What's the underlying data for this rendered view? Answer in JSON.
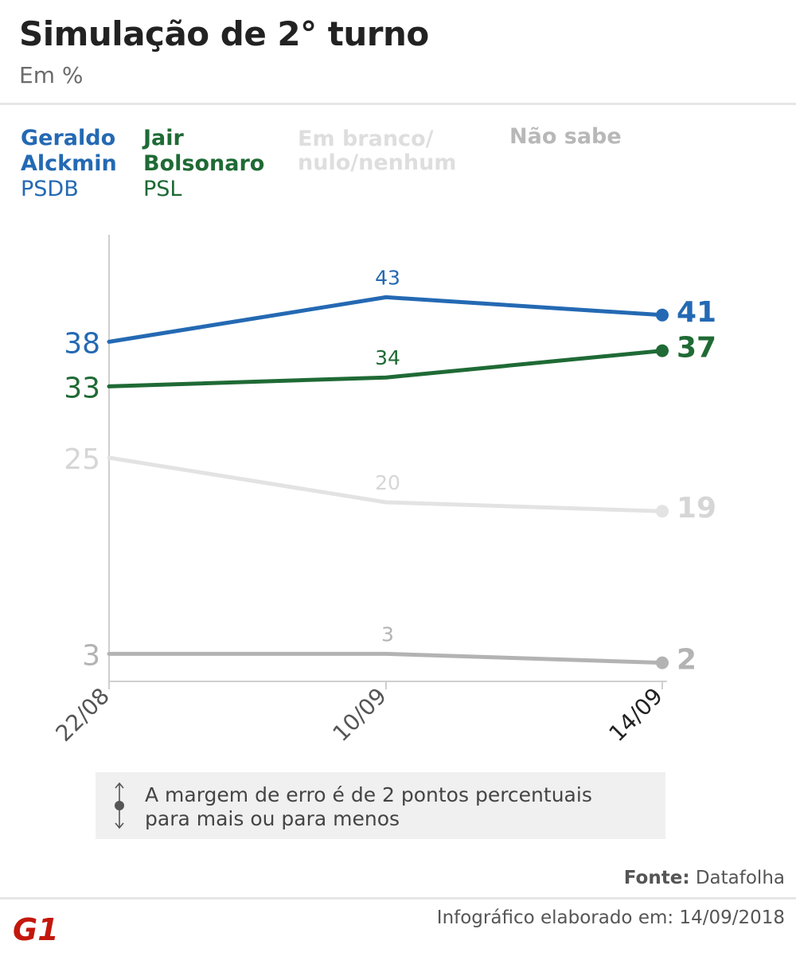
{
  "header": {
    "title": "Simulação de 2° turno",
    "subtitle": "Em %"
  },
  "legend": [
    {
      "name_line1": "Geraldo",
      "name_line2": "Alckmin",
      "party": "PSDB",
      "color": "#2469b3"
    },
    {
      "name_line1": "Jair",
      "name_line2": "Bolsonaro",
      "party": "PSL",
      "color": "#1f6a35"
    },
    {
      "name_line1": "Em branco/",
      "name_line2": "nulo/nenhum",
      "party": "",
      "color": "#dedede"
    },
    {
      "name_line1": "Não sabe",
      "name_line2": "",
      "party": "",
      "color": "#b8b8b8"
    }
  ],
  "chart_data": {
    "type": "line",
    "x": [
      "22/08",
      "10/09",
      "14/09"
    ],
    "series": [
      {
        "name": "Geraldo Alckmin",
        "values": [
          38,
          43,
          41
        ],
        "color": "#2469b3",
        "label_color": "#2469b3"
      },
      {
        "name": "Jair Bolsonaro",
        "values": [
          33,
          34,
          37
        ],
        "color": "#1f6a35",
        "label_color": "#1f6a35"
      },
      {
        "name": "Em branco/nulo/nenhum",
        "values": [
          25,
          20,
          19
        ],
        "color": "#e3e3e3",
        "label_color": "#d6d6d6"
      },
      {
        "name": "Não sabe",
        "values": [
          3,
          3,
          2
        ],
        "color": "#b3b3b3",
        "label_color": "#b3b3b3"
      }
    ]
  },
  "note": {
    "line1": "A margem de erro é de 2 pontos percentuais",
    "line2": "para mais ou para menos"
  },
  "source": {
    "label": "Fonte:",
    "value": "Datafolha"
  },
  "footer": {
    "text": "Infográfico elaborado em: 14/09/2018"
  },
  "logo": {
    "text": "G1",
    "color": "#c4170c"
  }
}
